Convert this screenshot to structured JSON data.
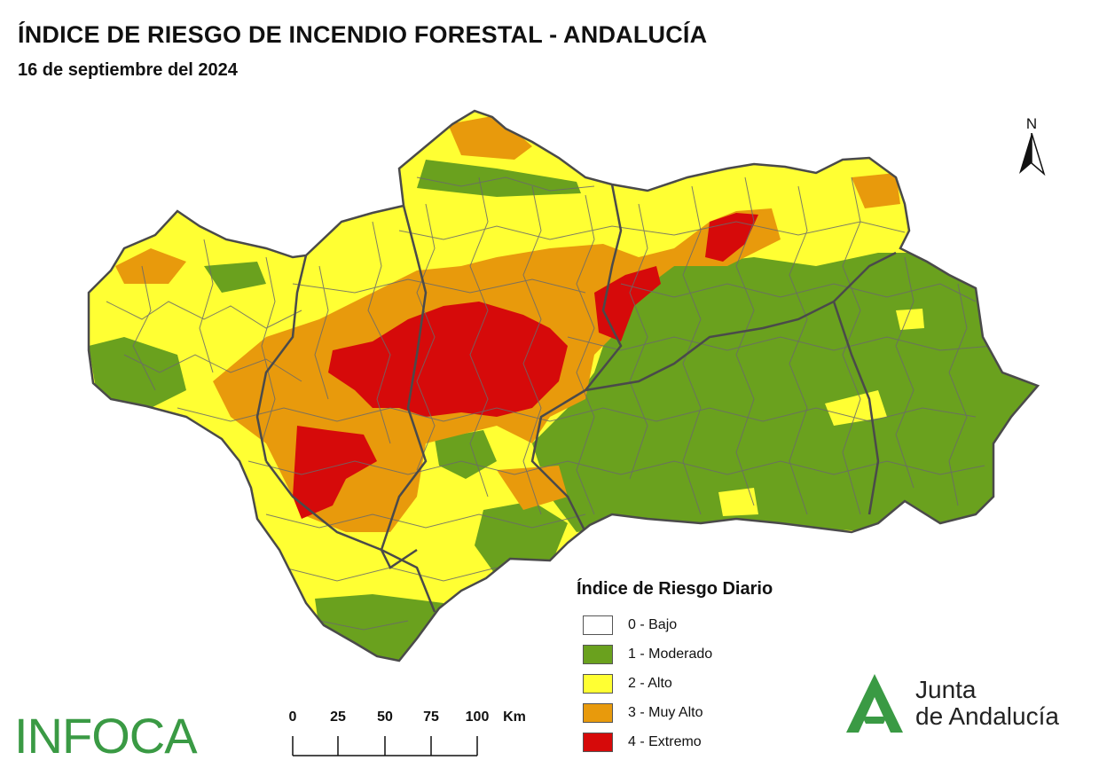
{
  "title": "ÍNDICE DE RIESGO DE INCENDIO FORESTAL - ANDALUCÍA",
  "subtitle": "16 de septiembre del 2024",
  "north_label": "N",
  "legend": {
    "title": "Índice de Riesgo Diario",
    "items": [
      {
        "label": "0 - Bajo",
        "color": "#ffffff"
      },
      {
        "label": "1 - Moderado",
        "color": "#6aa11e"
      },
      {
        "label": "2 - Alto",
        "color": "#ffff33"
      },
      {
        "label": "3 - Muy Alto",
        "color": "#e89a0c"
      },
      {
        "label": "4 - Extremo",
        "color": "#d60a0a"
      }
    ]
  },
  "scale": {
    "ticks": [
      "0",
      "25",
      "50",
      "75",
      "100"
    ],
    "unit": "Km"
  },
  "logos": {
    "infoca": "INFOCA",
    "junta_line1": "Junta",
    "junta_line2": "de Andalucía"
  },
  "colors": {
    "outline": "#555555",
    "brand_green": "#3a9a44"
  }
}
